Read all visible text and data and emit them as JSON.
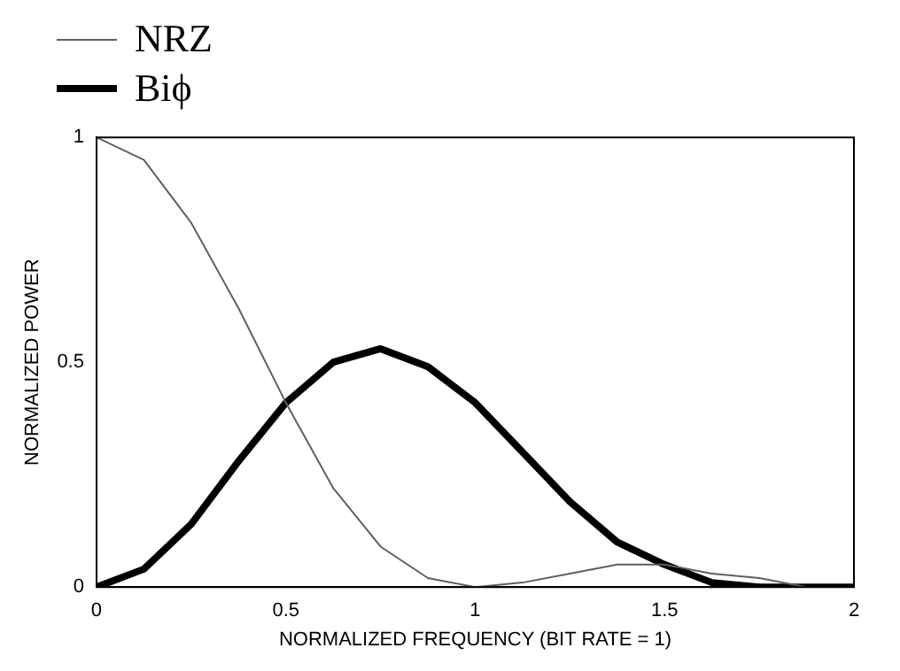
{
  "chart_data": {
    "type": "line",
    "xlabel": "NORMALIZED FREQUENCY (BIT RATE = 1)",
    "ylabel": "NORMALIZED POWER",
    "xlim": [
      0,
      2
    ],
    "xticks": [
      0,
      0.5,
      1,
      1.5,
      2
    ],
    "ylim": [
      0,
      1
    ],
    "yticks": [
      0,
      0.5,
      1
    ],
    "grid": false,
    "legend": "top left",
    "marker": "none",
    "x": [
      0,
      0.125,
      0.25,
      0.375,
      0.5,
      0.625,
      0.75,
      0.875,
      1,
      1.125,
      1.25,
      1.375,
      1.5,
      1.625,
      1.75,
      1.875,
      2
    ],
    "series": [
      {
        "name": "NRZ",
        "color": "#556655",
        "values": [
          1,
          0.95,
          0.81,
          0.62,
          0.41,
          0.22,
          0.09,
          0.02,
          0,
          0.01,
          0.03,
          0.05,
          0.05,
          0.03,
          0.02,
          0,
          0
        ]
      },
      {
        "name": "Biϕ",
        "color": "#000000",
        "values": [
          0,
          0.04,
          0.14,
          0.28,
          0.41,
          0.5,
          0.53,
          0.49,
          0.41,
          0.3,
          0.19,
          0.1,
          0.05,
          0.01,
          0,
          0,
          0
        ]
      }
    ]
  }
}
